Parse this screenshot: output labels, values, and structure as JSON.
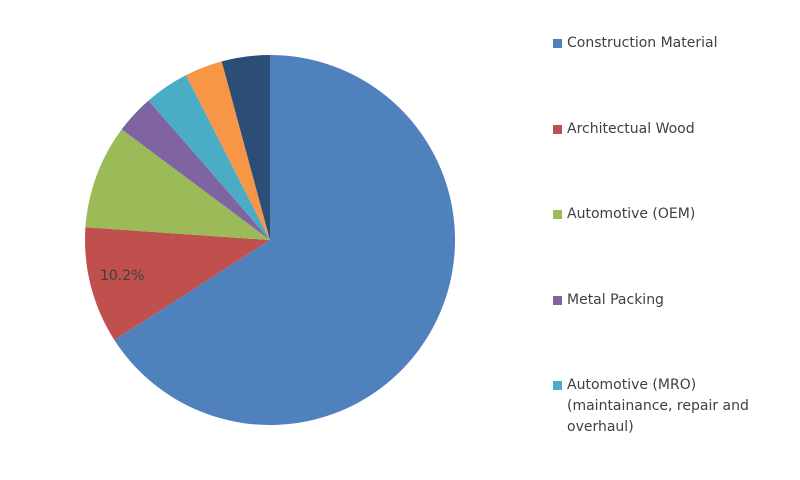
{
  "chart_data": {
    "type": "pie",
    "categories": [
      "Construction Material",
      "Architectual Wood",
      "Automotive (OEM)",
      "Metal Packing",
      "Automotive (MRO) (maintainance, repair and overhaul)",
      null,
      null
    ],
    "values": [
      65.9,
      10.2,
      9.1,
      3.4,
      3.9,
      3.3,
      4.2
    ],
    "value_labels": [
      null,
      "10.2%",
      null,
      null,
      null,
      null,
      null
    ],
    "colors": [
      "#4f81bd",
      "#c0504d",
      "#9bbb59",
      "#8064a2",
      "#4bacc6",
      "#f79646",
      "#2c4d75"
    ],
    "legend": "right"
  }
}
